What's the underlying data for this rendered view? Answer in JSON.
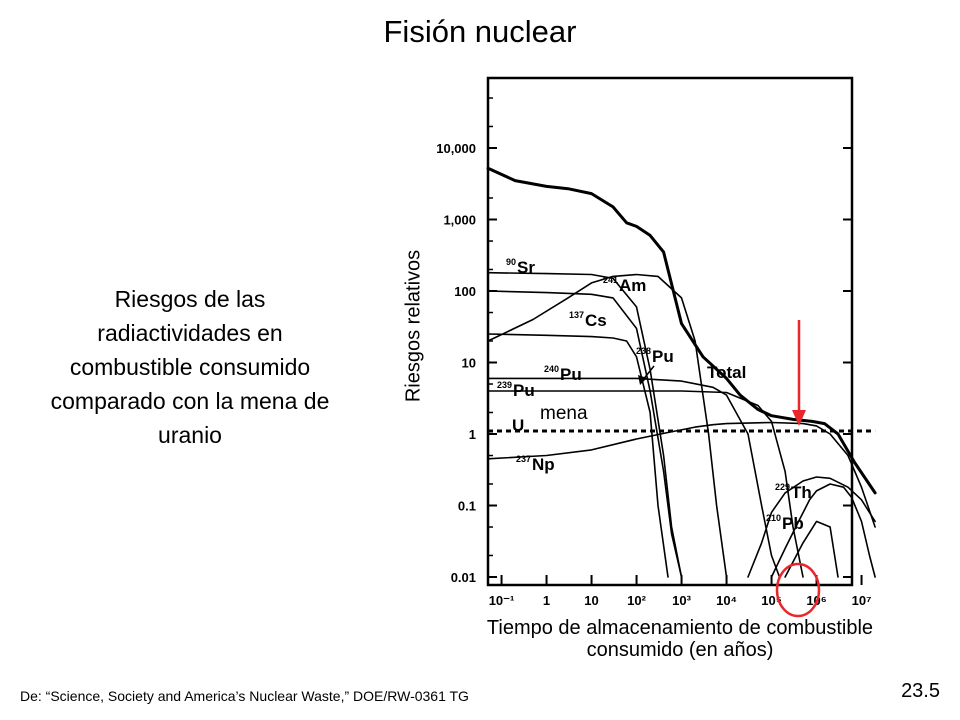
{
  "slide": {
    "title": "Fisión nuclear",
    "description": "Riesgos de las radiactividades en combustible consumido comparado con la mena de uranio",
    "source": "De: “Science, Society and America’s Nuclear Waste,” DOE/RW-0361 TG",
    "number": "23.5"
  },
  "chart_data": {
    "type": "line",
    "title": "",
    "xlabel": "Tiempo de almacenamiento de combustible consumido (en años)",
    "ylabel": "Riesgos relativos",
    "x_scale": "log",
    "y_scale": "log",
    "xlim": [
      0.05,
      20000000
    ],
    "ylim": [
      0.01,
      100000
    ],
    "x_ticks": [
      {
        "value": 0.1,
        "label": "10⁻¹"
      },
      {
        "value": 1,
        "label": "1"
      },
      {
        "value": 10,
        "label": "10"
      },
      {
        "value": 100,
        "label": "10²"
      },
      {
        "value": 1000,
        "label": "10³"
      },
      {
        "value": 10000,
        "label": "10⁴"
      },
      {
        "value": 100000,
        "label": "10⁵"
      },
      {
        "value": 1000000,
        "label": "10⁶"
      },
      {
        "value": 10000000,
        "label": "10⁷"
      }
    ],
    "y_ticks": [
      {
        "value": 0.01,
        "label": "0.01"
      },
      {
        "value": 0.1,
        "label": "0.1"
      },
      {
        "value": 1,
        "label": "1"
      },
      {
        "value": 10,
        "label": "10"
      },
      {
        "value": 100,
        "label": "100"
      },
      {
        "value": 1000,
        "label": "1,000"
      },
      {
        "value": 10000,
        "label": "10,000"
      }
    ],
    "series": [
      {
        "name": "Total",
        "mass": "",
        "element": "Total",
        "style": "bold",
        "x": [
          0.05,
          0.2,
          1,
          3,
          10,
          30,
          60,
          100,
          200,
          400,
          1000,
          3000,
          10000,
          20000,
          50000,
          100000,
          300000,
          800000,
          1500000,
          3000000,
          7000000,
          20000000
        ],
        "y": [
          5200,
          3500,
          2900,
          2700,
          2300,
          1500,
          900,
          800,
          600,
          350,
          35,
          12,
          6,
          3.5,
          2.2,
          1.8,
          1.6,
          1.5,
          1.4,
          1.0,
          0.4,
          0.15
        ]
      },
      {
        "name": "90 Sr",
        "mass": "90",
        "element": "Sr",
        "style": "thin",
        "x": [
          0.05,
          1,
          10,
          30,
          100,
          200,
          400,
          600,
          1000
        ],
        "y": [
          180,
          175,
          170,
          150,
          60,
          8,
          0.5,
          0.05,
          0.01
        ]
      },
      {
        "name": "241 Am",
        "mass": "241",
        "element": "Am",
        "style": "thin",
        "x": [
          0.05,
          0.5,
          3,
          10,
          30,
          100,
          300,
          1000,
          2000,
          4000,
          6000,
          10000
        ],
        "y": [
          20,
          40,
          80,
          130,
          160,
          170,
          160,
          80,
          20,
          1,
          0.1,
          0.01
        ]
      },
      {
        "name": "137 Cs",
        "mass": "137",
        "element": "Cs",
        "style": "thin",
        "x": [
          0.05,
          1,
          10,
          30,
          100,
          200,
          400,
          600,
          1000
        ],
        "y": [
          100,
          95,
          90,
          80,
          30,
          4,
          0.3,
          0.04,
          0.01
        ]
      },
      {
        "name": "238 Pu",
        "mass": "238",
        "element": "Pu",
        "style": "thin",
        "x": [
          0.05,
          1,
          10,
          30,
          60,
          100,
          200,
          300,
          500
        ],
        "y": [
          25,
          24,
          23,
          22,
          20,
          12,
          2,
          0.1,
          0.01
        ]
      },
      {
        "name": "240 Pu",
        "mass": "240",
        "element": "Pu",
        "style": "thin",
        "x": [
          0.05,
          10,
          100,
          1000,
          5000,
          10000,
          30000,
          60000,
          100000,
          150000
        ],
        "y": [
          6,
          6,
          6,
          5.5,
          4.5,
          3.5,
          1,
          0.1,
          0.02,
          0.01
        ]
      },
      {
        "name": "239 Pu",
        "mass": "239",
        "element": "Pu",
        "style": "thin",
        "x": [
          0.05,
          10,
          1000,
          10000,
          50000,
          100000,
          200000,
          300000,
          500000
        ],
        "y": [
          4,
          4,
          4,
          3.8,
          2.5,
          1.5,
          0.3,
          0.05,
          0.01
        ]
      },
      {
        "name": "U",
        "mass": "",
        "element": "U",
        "style": "dotted",
        "x": [
          0.05,
          20000000
        ],
        "y": [
          1.1,
          1.1
        ]
      },
      {
        "name": "237 Np",
        "mass": "237",
        "element": "Np",
        "style": "thin",
        "x": [
          0.05,
          1,
          10,
          100,
          500,
          2000,
          5000,
          10000,
          100000,
          500000,
          1000000,
          2000000,
          5000000,
          10000000,
          20000000
        ],
        "y": [
          0.45,
          0.5,
          0.6,
          0.85,
          1.05,
          1.25,
          1.35,
          1.4,
          1.45,
          1.4,
          1.3,
          1.0,
          0.5,
          0.18,
          0.05
        ]
      },
      {
        "name": "229 Th",
        "mass": "229",
        "element": "Th",
        "style": "thin",
        "x": [
          30000,
          60000,
          100000,
          200000,
          500000,
          1000000,
          2000000,
          5000000,
          10000000,
          20000000
        ],
        "y": [
          0.01,
          0.03,
          0.08,
          0.15,
          0.22,
          0.25,
          0.24,
          0.18,
          0.12,
          0.06
        ]
      },
      {
        "name": "210 Pb",
        "mass": "210",
        "element": "Pb",
        "style": "thin",
        "x": [
          100000,
          200000,
          400000,
          700000,
          1000000,
          2000000,
          4000000,
          6000000,
          10000000,
          15000000,
          20000000
        ],
        "y": [
          0.01,
          0.025,
          0.06,
          0.12,
          0.16,
          0.2,
          0.18,
          0.13,
          0.06,
          0.02,
          0.01
        ]
      },
      {
        "name": "Pb/Th tail",
        "mass": "",
        "element": "",
        "style": "thin",
        "x": [
          200000,
          500000,
          1000000,
          2000000,
          3000000
        ],
        "y": [
          0.01,
          0.03,
          0.06,
          0.05,
          0.01
        ]
      }
    ],
    "annotations": {
      "ore_label": "mena",
      "highlight_marker": "red circle around 10⁶ years",
      "arrow_marker": "red arrow pointing down at ~10⁶ years where total reaches ore level",
      "pu238_pointer": "small arrow from 238 Pu label to its curve"
    },
    "colors": {
      "curves": "#000000",
      "highlight": "#e8262b",
      "frame": "#000000"
    }
  }
}
